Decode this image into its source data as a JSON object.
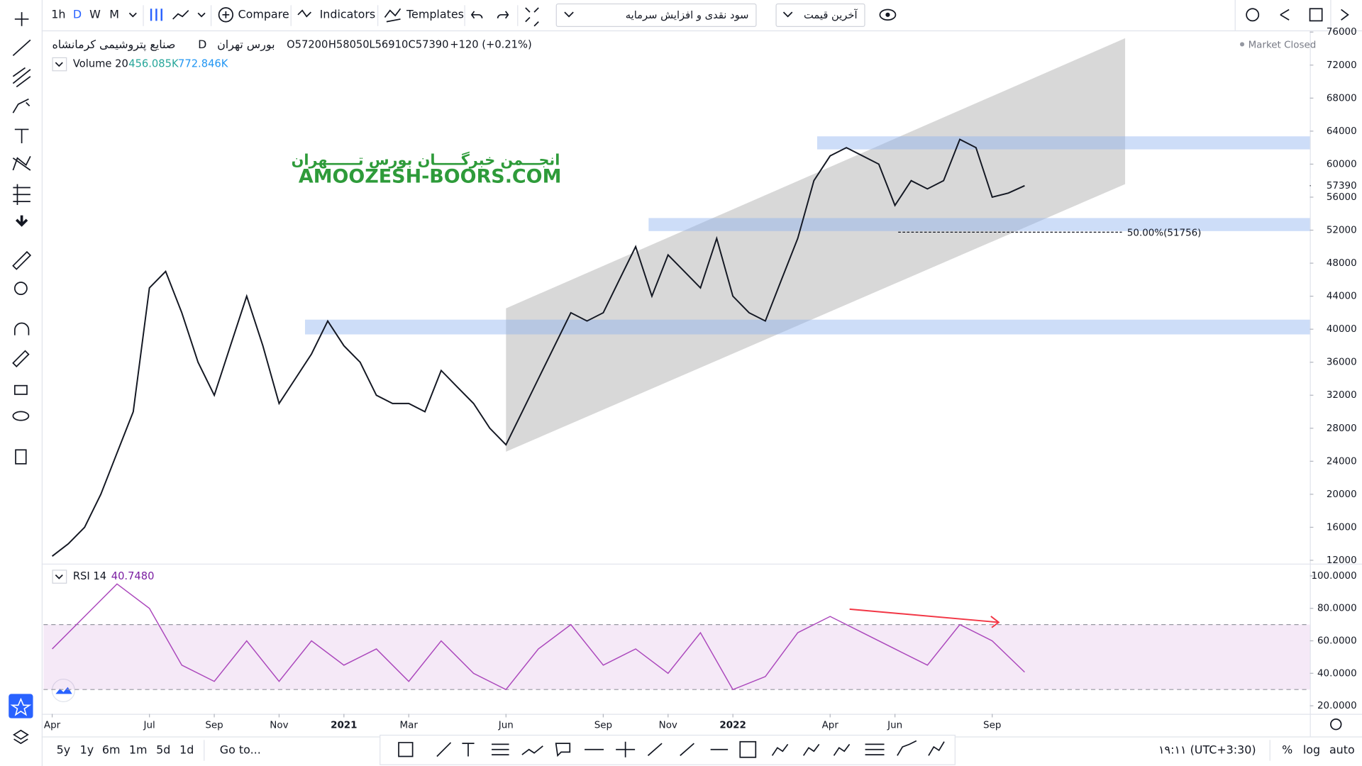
{
  "toolbar": {
    "intervals": [
      "1h",
      "D",
      "W",
      "M"
    ],
    "compare": "Compare",
    "indicators": "Indicators",
    "templates": "Templates",
    "dividends": "سود نقدی و افزایش سرمایه",
    "price_source": "آخرین قیمت"
  },
  "legend": {
    "symbol": "صنایع پتروشیمی کرمانشاه",
    "interval": "D",
    "exchange": "بورس تهران",
    "open": "O57200",
    "high": "H58050",
    "low": "L56910",
    "close": "C57390",
    "change": "+120 (+0.21%)",
    "volume_name": "Volume 20",
    "volume_value": "456.085K",
    "volume_ma": "772.846K",
    "market_status": "Market Closed"
  },
  "watermark": {
    "persian": "انجـــمن خبرگـــــان بورس تــــــهران",
    "latin": "AMOOZESH-BOORS.COM"
  },
  "chart_data": [
    {
      "type": "line",
      "xlim": [
        -0.27,
        38.8
      ],
      "ylim": [
        11700,
        76100
      ],
      "yticks": [
        12000,
        16000,
        20000,
        24000,
        28000,
        32000,
        36000,
        40000,
        44000,
        48000,
        52000,
        56000,
        60000,
        64000,
        68000,
        72000,
        76000
      ],
      "xticks": [
        {
          "value": 0,
          "label": "Apr"
        },
        {
          "value": 3,
          "label": "Jul"
        },
        {
          "value": 5,
          "label": "Sep"
        },
        {
          "value": 7,
          "label": "Nov"
        },
        {
          "value": 9,
          "label": "2021"
        },
        {
          "value": 11,
          "label": "Mar"
        },
        {
          "value": 14,
          "label": "Jun"
        },
        {
          "value": 17,
          "label": "Sep"
        },
        {
          "value": 19,
          "label": "Nov"
        },
        {
          "value": 21,
          "label": "2022"
        },
        {
          "value": 24,
          "label": "Apr"
        },
        {
          "value": 26,
          "label": "Jun"
        },
        {
          "value": 29,
          "label": "Sep"
        }
      ],
      "x": [
        0,
        0.5,
        1,
        1.5,
        2,
        2.5,
        3,
        3.5,
        4,
        4.5,
        5,
        5.5,
        6,
        6.5,
        7,
        7.5,
        8,
        8.5,
        9,
        9.5,
        10,
        10.5,
        11,
        11.5,
        12,
        12.5,
        13,
        13.5,
        14,
        14.5,
        15,
        15.5,
        16,
        16.5,
        17,
        17.5,
        18,
        18.5,
        19,
        19.5,
        20,
        20.5,
        21,
        21.5,
        22,
        22.5,
        23,
        23.5,
        24,
        24.5,
        25,
        25.5,
        26,
        26.5,
        27,
        27.5,
        28,
        28.5,
        29,
        29.5,
        30
      ],
      "series": [
        {
          "name": "Close",
          "color": "#131722",
          "values": [
            12500,
            14000,
            16000,
            20000,
            25000,
            30000,
            45000,
            47000,
            42000,
            36000,
            32000,
            38000,
            44000,
            38000,
            31000,
            34000,
            37000,
            41000,
            38000,
            36000,
            32000,
            31000,
            31000,
            30000,
            35000,
            33000,
            31000,
            28000,
            26000,
            30000,
            34000,
            38000,
            42000,
            41000,
            42000,
            46000,
            50000,
            44000,
            49000,
            47000,
            45000,
            51000,
            44000,
            42000,
            41000,
            46000,
            51000,
            58000,
            61000,
            62000,
            61000,
            60000,
            55000,
            58000,
            57000,
            58000,
            63000,
            62000,
            56000,
            56500,
            57390
          ]
        }
      ],
      "last_price": 57390,
      "channel": {
        "x": [
          14,
          33.1
        ],
        "lower": [
          25160,
          57580
        ],
        "upper": [
          42530,
          75260
        ]
      },
      "zones": [
        {
          "x": [
            7.8,
            38.8
          ],
          "y": [
            39370,
            41160
          ]
        },
        {
          "x": [
            18.4,
            38.8
          ],
          "y": [
            51890,
            53470
          ]
        },
        {
          "x": [
            23.6,
            38.8
          ],
          "y": [
            61790,
            63370
          ]
        }
      ],
      "fib": {
        "label": "50.00%(51756)",
        "value": 51756,
        "x": [
          26.1,
          33
        ]
      }
    },
    {
      "type": "line",
      "name": "RSI 14",
      "last_value_label": "40.7480",
      "xlim": [
        -0.27,
        38.8
      ],
      "ylim": [
        15,
        107
      ],
      "yticks": [
        {
          "value": 20,
          "label": "20.0000"
        },
        {
          "value": 40,
          "label": "40.0000"
        },
        {
          "value": 60,
          "label": "60.0000"
        },
        {
          "value": 80,
          "label": "80.0000"
        },
        {
          "value": 100,
          "label": "100.0000"
        }
      ],
      "bands": [
        30,
        70
      ],
      "color": "#ab47bc",
      "x": [
        0,
        1,
        2,
        3,
        4,
        5,
        6,
        7,
        8,
        9,
        10,
        11,
        12,
        13,
        14,
        15,
        16,
        17,
        18,
        19,
        20,
        21,
        22,
        23,
        24,
        25,
        26,
        27,
        28,
        29,
        30
      ],
      "values": [
        55,
        75,
        95,
        80,
        45,
        35,
        60,
        35,
        60,
        45,
        55,
        35,
        60,
        40,
        30,
        55,
        70,
        45,
        55,
        40,
        65,
        30,
        38,
        65,
        75,
        65,
        55,
        45,
        70,
        60,
        40.748
      ],
      "arrow": {
        "x": [
          24.6,
          29.2
        ],
        "y": [
          79.5,
          71.4
        ],
        "color": "#f23645"
      }
    }
  ],
  "bottom_bar": {
    "ranges": [
      "5y",
      "1y",
      "6m",
      "1m",
      "5d",
      "1d"
    ],
    "goto": "Go to...",
    "clock": "۱۹:۱۱ (UTC+3:30)",
    "percent": "%",
    "log": "log",
    "auto": "auto"
  }
}
